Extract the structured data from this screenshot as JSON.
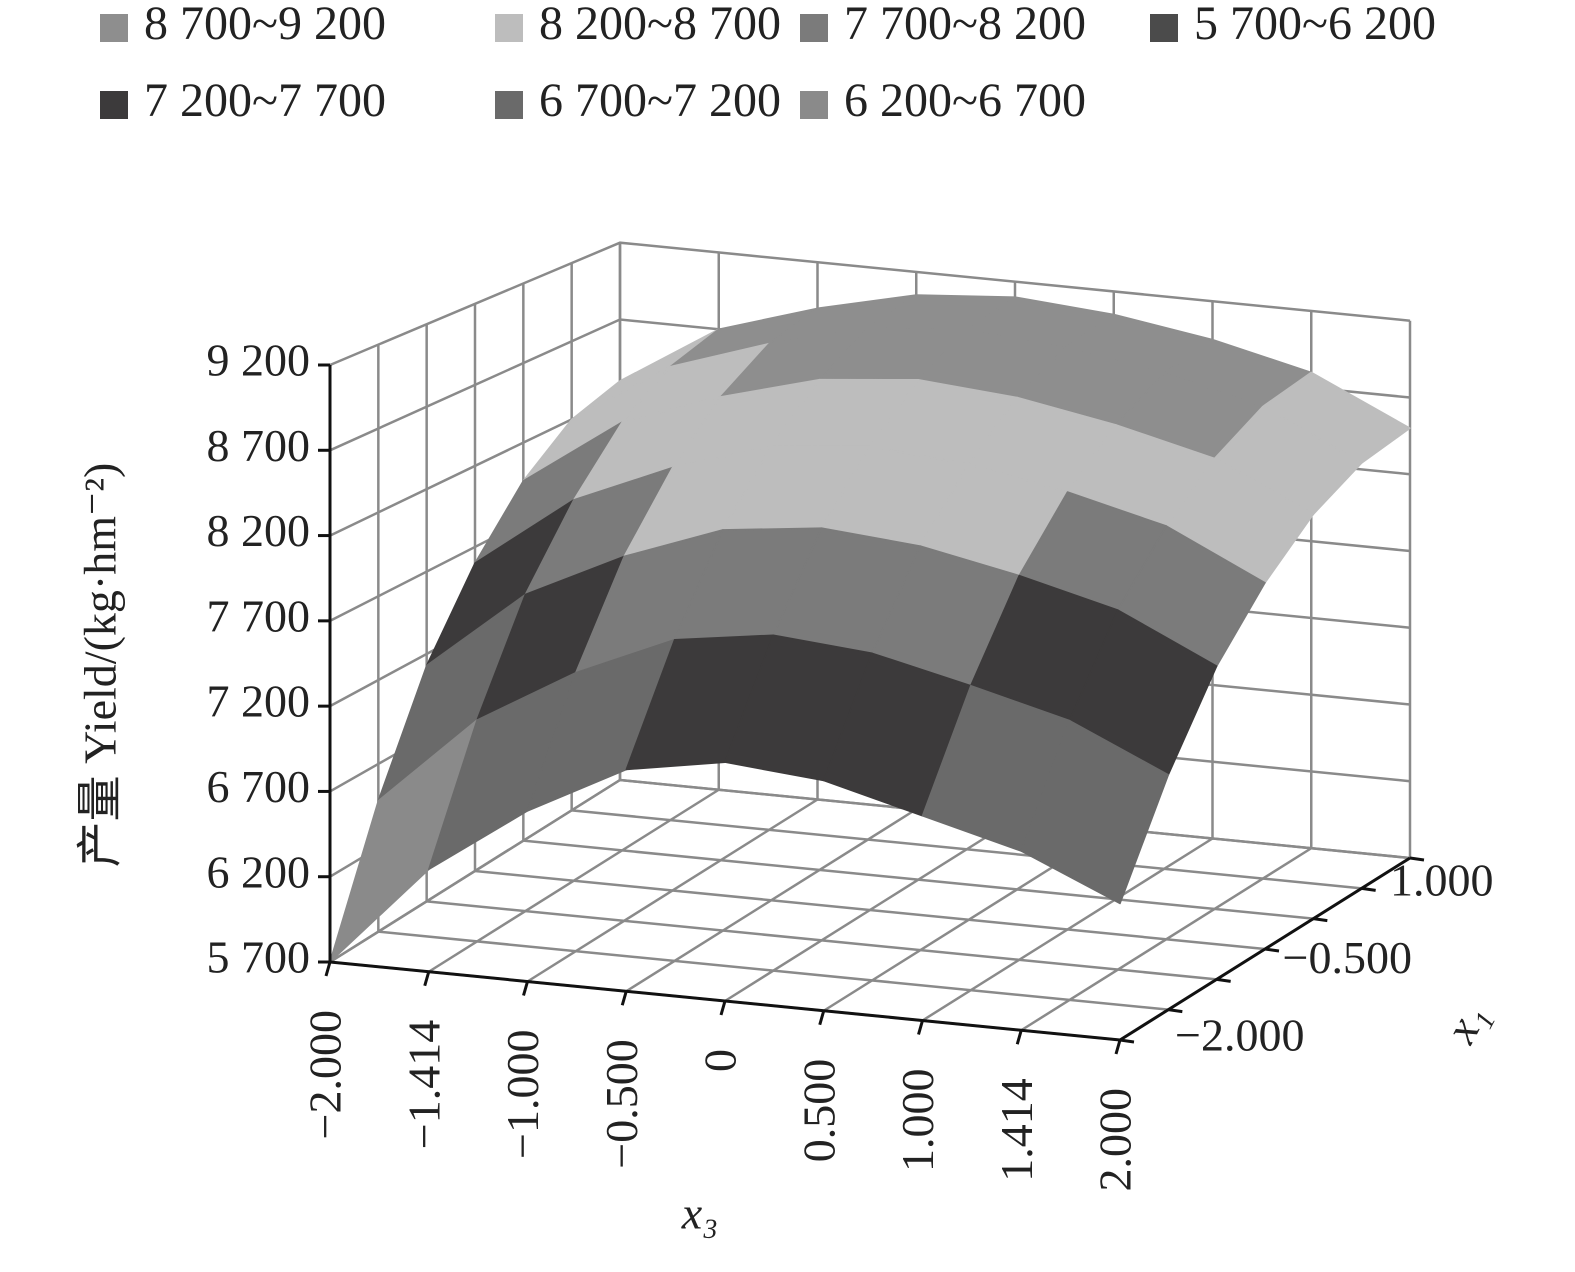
{
  "chart_data": {
    "type": "surface",
    "ylabel": "产量 Yield/(kg·hm⁻²)",
    "xlabel": "x₃",
    "depth_label": "x₁",
    "x_categories": [
      "−2.000",
      "−1.414",
      "−1.000",
      "−0.500",
      "0",
      "0.500",
      "1.000",
      "1.414",
      "2.000"
    ],
    "depth_categories": [
      "−2.000",
      null,
      null,
      "−0.500",
      null,
      null,
      "1.000"
    ],
    "z": [
      [
        5700,
        6300,
        6700,
        7000,
        7100,
        7050,
        6900,
        6750,
        6500
      ],
      [
        6480,
        7020,
        7360,
        7615,
        7700,
        7650,
        7515,
        7365,
        7100
      ],
      [
        7130,
        7620,
        7910,
        8130,
        8200,
        8150,
        8030,
        7880,
        7600
      ],
      [
        7600,
        8050,
        8310,
        8500,
        8560,
        8510,
        8400,
        8250,
        7960
      ],
      [
        7960,
        8390,
        8610,
        8780,
        8840,
        8790,
        8680,
        8530,
        8240
      ],
      [
        8200,
        8600,
        8810,
        8970,
        9020,
        8970,
        8870,
        8720,
        8420
      ],
      [
        8300,
        8700,
        8900,
        9050,
        9100,
        9050,
        8950,
        8800,
        8500
      ]
    ],
    "zlim": [
      5700,
      9200
    ],
    "zticks": [
      {
        "value": 5700,
        "label": "5 700"
      },
      {
        "value": 6200,
        "label": "6 200"
      },
      {
        "value": 6700,
        "label": "6 700"
      },
      {
        "value": 7200,
        "label": "7 200"
      },
      {
        "value": 7700,
        "label": "7 700"
      },
      {
        "value": 8200,
        "label": "8 200"
      },
      {
        "value": 8700,
        "label": "8 700"
      },
      {
        "value": 9200,
        "label": "9 200"
      }
    ],
    "legend": [
      {
        "name": "8 700~9 200",
        "color": "#8e8e8e",
        "range": [
          8700,
          9200
        ]
      },
      {
        "name": "8 200~8 700",
        "color": "#bdbdbd",
        "range": [
          8200,
          8700
        ]
      },
      {
        "name": "7 700~8 200",
        "color": "#7b7b7b",
        "range": [
          7700,
          8200
        ]
      },
      {
        "name": "5 700~6 200",
        "color": "#4b4b4b",
        "range": [
          5700,
          6200
        ]
      },
      {
        "name": "7 200~7 700",
        "color": "#3c3a3b",
        "range": [
          7200,
          7700
        ]
      },
      {
        "name": "6 700~7 200",
        "color": "#6a6a6a",
        "range": [
          6700,
          7200
        ]
      },
      {
        "name": "6 200~6 700",
        "color": "#8a8a8a",
        "range": [
          6200,
          6700
        ]
      }
    ],
    "grid": true
  }
}
